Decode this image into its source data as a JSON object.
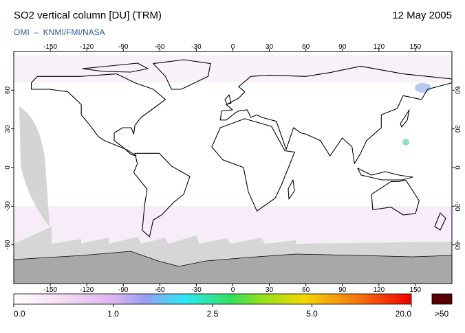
{
  "map": {
    "title": "SO2 vertical column [DU] (TRM)",
    "date": "12 May 2005",
    "subtitle": "OMI  –  KNMI/FMI/NASA",
    "lon_ticks": [
      -150,
      -120,
      -90,
      -60,
      -30,
      0,
      30,
      60,
      90,
      120,
      150
    ],
    "lat_ticks": [
      60,
      30,
      0,
      -30,
      -60
    ],
    "colorbar": {
      "ticks": [
        {
          "value": 0,
          "label": "0.0"
        },
        {
          "value": 1,
          "label": "1.0"
        },
        {
          "value": 2.5,
          "label": "2.5"
        },
        {
          "value": 5,
          "label": "5.0"
        },
        {
          "value": 20,
          "label": "20.0"
        }
      ],
      "overflow_label": ">50"
    }
  }
}
